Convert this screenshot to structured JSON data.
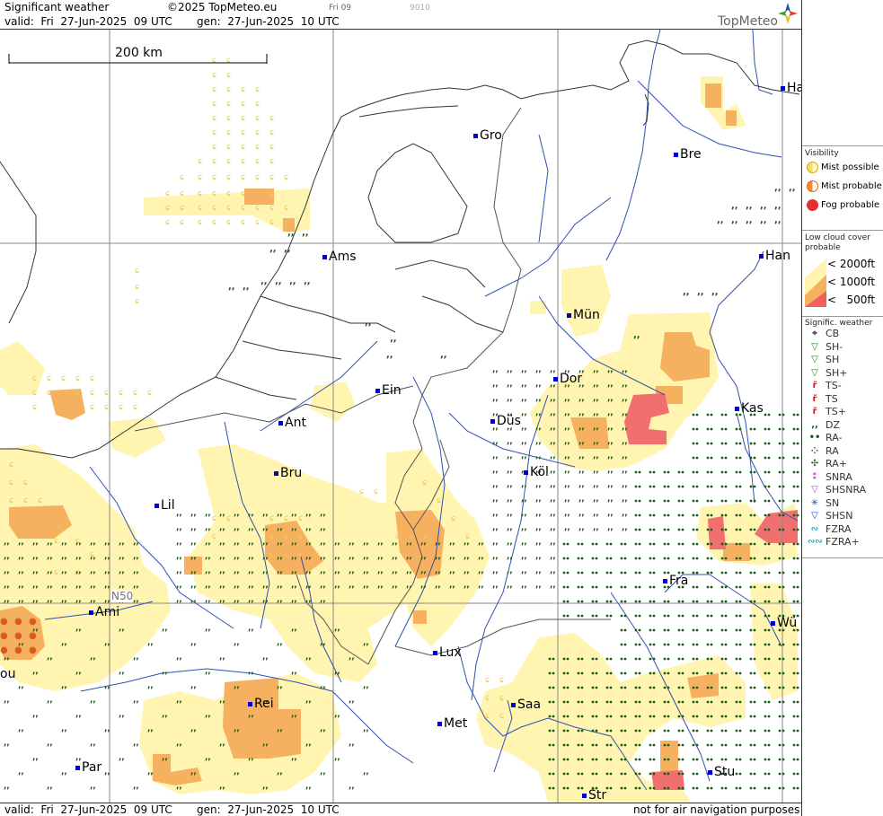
{
  "header": {
    "title": "Significant weather",
    "copyright": "©2025 TopMeteo.eu",
    "time_tab": "Fri 09",
    "code": "9010",
    "valid": "valid:  Fri  27-Jun-2025  09 UTC",
    "gen": "gen:  27-Jun-2025  10 UTC",
    "logo": "TopMeteo"
  },
  "map": {
    "scale_label": "200 km",
    "lat_label": "N50",
    "cities": [
      {
        "name": "Ha"
      },
      {
        "name": "Gro"
      },
      {
        "name": "Bre"
      },
      {
        "name": "Ams"
      },
      {
        "name": "Han"
      },
      {
        "name": "Mün"
      },
      {
        "name": "Dor"
      },
      {
        "name": "Ein"
      },
      {
        "name": "Kas"
      },
      {
        "name": "Düs"
      },
      {
        "name": "Ant"
      },
      {
        "name": "Bru"
      },
      {
        "name": "Köl"
      },
      {
        "name": "Lil"
      },
      {
        "name": "Fra"
      },
      {
        "name": "Ami"
      },
      {
        "name": "Wü"
      },
      {
        "name": "Lux"
      },
      {
        "name": "ou"
      },
      {
        "name": "Rei"
      },
      {
        "name": "Saa"
      },
      {
        "name": "Met"
      },
      {
        "name": "Par"
      },
      {
        "name": "Stu"
      },
      {
        "name": "Str"
      }
    ]
  },
  "footer": {
    "valid": "valid:  Fri  27-Jun-2025  09 UTC",
    "gen": "gen:  27-Jun-2025  10 UTC",
    "disclaimer": "not for air navigation purposes"
  },
  "legend": {
    "visibility_title": "Visibility",
    "visibility": [
      {
        "label": "Mist possible",
        "color": "#f2e060"
      },
      {
        "label": "Mist probable",
        "color": "#f08a30"
      },
      {
        "label": "Fog probable",
        "color": "#e03030"
      }
    ],
    "cloud_title": "Low cloud cover probable",
    "cloud": [
      {
        "label": "< 2000ft",
        "color": "#fff5b0"
      },
      {
        "label": "< 1000ft",
        "color": "#f5b060"
      },
      {
        "label": "<   500ft",
        "color": "#f06060"
      }
    ],
    "wx_title": "Signific. weather",
    "wx": [
      {
        "label": "CB",
        "glyph": "⌖",
        "color": "#444444"
      },
      {
        "label": "SH-",
        "glyph": "▽",
        "color": "#1a8a1a"
      },
      {
        "label": "SH",
        "glyph": "▽",
        "color": "#1a8a1a"
      },
      {
        "label": "SH+",
        "glyph": "▽",
        "color": "#1a8a1a"
      },
      {
        "label": "TS-",
        "glyph": "ř",
        "color": "#cc2020"
      },
      {
        "label": "TS",
        "glyph": "ř",
        "color": "#cc2020"
      },
      {
        "label": "TS+",
        "glyph": "ř",
        "color": "#cc2020"
      },
      {
        "label": "DZ",
        "glyph": ",,",
        "color": "#1a5a1a"
      },
      {
        "label": "RA-",
        "glyph": "••",
        "color": "#1a5a1a"
      },
      {
        "label": "RA",
        "glyph": "⁘",
        "color": "#1a5a1a"
      },
      {
        "label": "RA+",
        "glyph": "✣",
        "color": "#1a5a1a"
      },
      {
        "label": "SNRA",
        "glyph": "⁑",
        "color": "#cc33cc"
      },
      {
        "label": "SHSNRA",
        "glyph": "▽",
        "color": "#cc33cc"
      },
      {
        "label": "SN",
        "glyph": "✳",
        "color": "#2244cc"
      },
      {
        "label": "SHSN",
        "glyph": "▽",
        "color": "#2244cc"
      },
      {
        "label": "FZRA",
        "glyph": "∾",
        "color": "#22aacc"
      },
      {
        "label": "FZRA+",
        "glyph": "∾∾",
        "color": "#22aacc"
      }
    ]
  }
}
